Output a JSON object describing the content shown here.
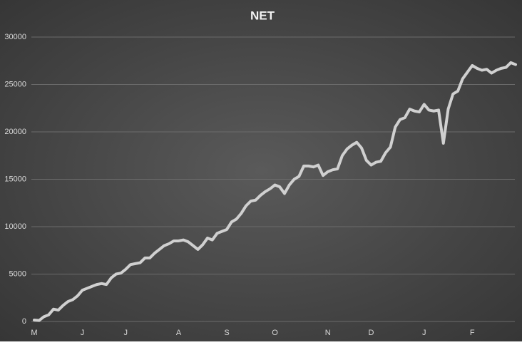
{
  "chart_data": {
    "type": "line",
    "title": "NET",
    "categories": [
      "M",
      null,
      null,
      null,
      null,
      null,
      null,
      null,
      null,
      null,
      "J",
      null,
      null,
      null,
      null,
      null,
      null,
      null,
      null,
      "J",
      null,
      null,
      null,
      null,
      null,
      null,
      null,
      null,
      null,
      null,
      "A",
      null,
      null,
      null,
      null,
      null,
      null,
      null,
      null,
      null,
      "S",
      null,
      null,
      null,
      null,
      null,
      null,
      null,
      null,
      null,
      "O",
      null,
      null,
      null,
      null,
      null,
      null,
      null,
      null,
      null,
      null,
      "N",
      null,
      null,
      null,
      null,
      null,
      null,
      null,
      null,
      "D",
      null,
      null,
      null,
      null,
      null,
      null,
      null,
      null,
      null,
      null,
      "J",
      null,
      null,
      null,
      null,
      null,
      null,
      null,
      null,
      null,
      "F",
      null,
      null,
      null,
      null,
      null,
      null,
      null,
      null,
      null
    ],
    "values": [
      150,
      100,
      500,
      700,
      1300,
      1200,
      1700,
      2100,
      2300,
      2700,
      3300,
      3500,
      3700,
      3900,
      4000,
      3900,
      4600,
      5000,
      5100,
      5500,
      6000,
      6100,
      6200,
      6700,
      6700,
      7200,
      7600,
      8000,
      8200,
      8500,
      8500,
      8600,
      8400,
      8000,
      7600,
      8100,
      8800,
      8600,
      9300,
      9500,
      9700,
      10500,
      10800,
      11400,
      12200,
      12700,
      12800,
      13300,
      13700,
      14000,
      14400,
      14200,
      13500,
      14400,
      15000,
      15300,
      16400,
      16400,
      16300,
      16500,
      15400,
      15800,
      16000,
      16100,
      17500,
      18200,
      18600,
      18900,
      18300,
      17000,
      16500,
      16800,
      16900,
      17800,
      18400,
      20500,
      21300,
      21500,
      22400,
      22200,
      22100,
      22900,
      22300,
      22200,
      22300,
      18800,
      22400,
      24000,
      24300,
      25600,
      26300,
      27000,
      26700,
      26500,
      26600,
      26200,
      26500,
      26700,
      26800,
      27300,
      27100
    ],
    "color": "#d0d0d0",
    "ylim": [
      0,
      30000
    ],
    "yticks": [
      0,
      5000,
      10000,
      15000,
      20000,
      25000,
      30000
    ],
    "grid": true
  }
}
